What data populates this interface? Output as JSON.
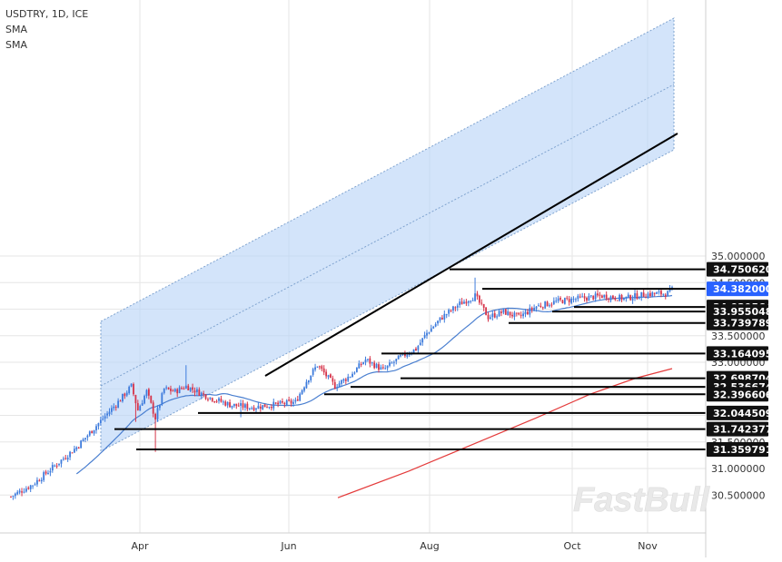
{
  "legend": {
    "symbol": "USDTRY, 1D, ICE",
    "sma1": "SMA",
    "sma2": "SMA"
  },
  "watermark": "FastBull",
  "colors": {
    "candle_up": "#3d7bdc",
    "candle_down": "#d6344a",
    "sma_fast": "#4a7fd0",
    "sma_slow": "#e43b3b",
    "channel_fill": "#bcd5f7",
    "channel_border": "#7fa3cf",
    "level_line": "#000000",
    "current_price_bg": "#2962ff",
    "axis_text": "#333333",
    "grid": "#e6e6e6"
  },
  "chart_data": {
    "type": "candlestick",
    "title": "USDTRY, 1D, ICE",
    "x_ticks": [
      "Apr",
      "Jun",
      "Aug",
      "Oct",
      "Nov"
    ],
    "y_ticks": [
      "30.500000",
      "31.000000",
      "31.500000",
      "32.000000",
      "32.500000",
      "33.000000",
      "33.500000",
      "34.000000",
      "34.500000",
      "35.000000"
    ],
    "ylim": [
      30.45,
      35.25
    ],
    "grid": true,
    "current_price": "34.382000",
    "horizontal_levels": [
      {
        "label": "34.750620",
        "value": 34.75062
      },
      {
        "label": "34.382000",
        "value": 34.382
      },
      {
        "label": "34.039564",
        "value": 34.039564
      },
      {
        "label": "33.955048",
        "value": 33.955048
      },
      {
        "label": "33.739789",
        "value": 33.739789
      },
      {
        "label": "33.164095",
        "value": 33.164095
      },
      {
        "label": "32.698704",
        "value": 32.698704
      },
      {
        "label": "32.536674",
        "value": 32.536674
      },
      {
        "label": "32.396606",
        "value": 32.396606
      },
      {
        "label": "32.044509",
        "value": 32.044509
      },
      {
        "label": "31.742377",
        "value": 31.742377
      },
      {
        "label": "31.359791",
        "value": 31.359791
      }
    ],
    "series": [
      {
        "name": "SMA",
        "type": "line"
      },
      {
        "name": "SMA",
        "type": "line"
      }
    ]
  }
}
